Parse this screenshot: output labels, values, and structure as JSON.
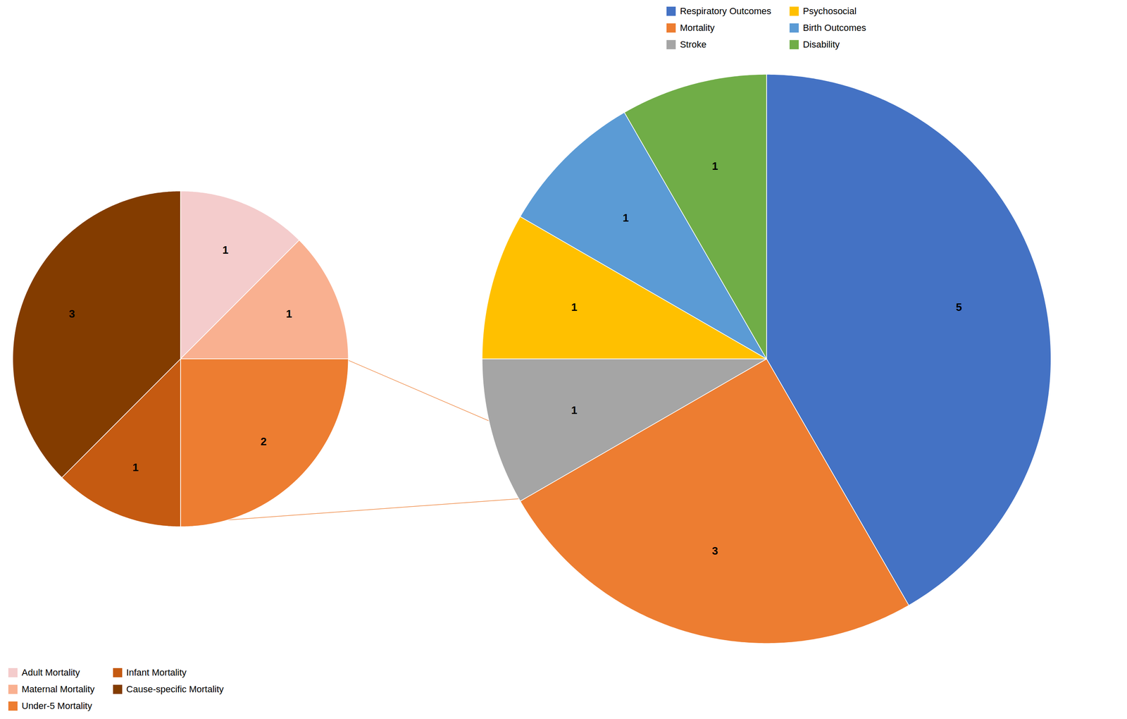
{
  "chart_data": [
    {
      "type": "pie",
      "categories": [
        "Respiratory Outcomes",
        "Mortality",
        "Stroke",
        "Psychosocial",
        "Birth Outcomes",
        "Disability"
      ],
      "values": [
        5,
        3,
        1,
        1,
        1,
        1
      ],
      "colors": [
        "#4472C4",
        "#ED7D31",
        "#A5A5A5",
        "#FFC000",
        "#5B9BD5",
        "#70AD47"
      ],
      "data_labels": true,
      "legend": "upper center"
    },
    {
      "type": "pie",
      "categories": [
        "Adult Mortality",
        "Maternal Mortality",
        "Under-5 Mortality",
        "Infant Mortality",
        "Cause-specific Mortality"
      ],
      "values": [
        1,
        1,
        2,
        1,
        3
      ],
      "colors": [
        "#F4CCCC",
        "#F9B090",
        "#ED7D31",
        "#C55A11",
        "#833C00"
      ],
      "data_labels": true,
      "legend": "lower left"
    }
  ]
}
